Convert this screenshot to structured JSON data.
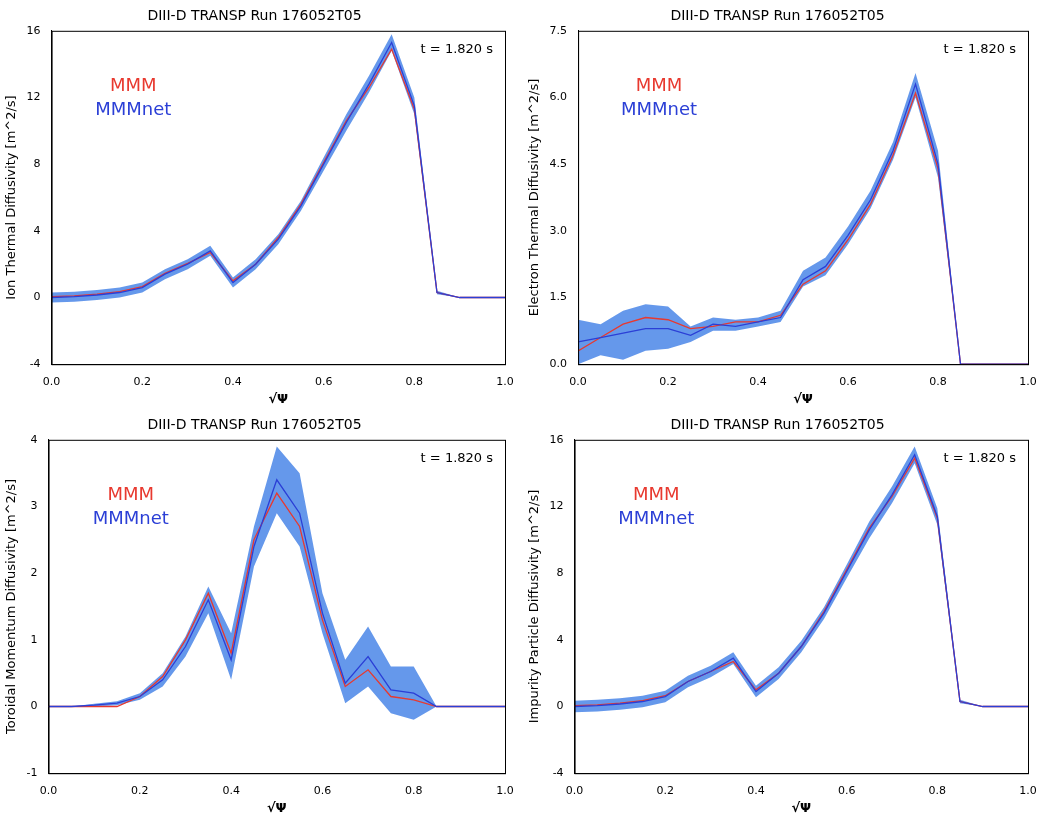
{
  "chart_data": [
    {
      "type": "line",
      "title": "DIII-D TRANSP Run 176052T05",
      "ylabel": "Ion Thermal Diffusivity [m^2/s]",
      "xlabel": "√Ψ",
      "annotation": "t = 1.820 s",
      "x": [
        0,
        0.05,
        0.1,
        0.15,
        0.2,
        0.25,
        0.3,
        0.35,
        0.4,
        0.45,
        0.5,
        0.55,
        0.6,
        0.65,
        0.7,
        0.75,
        0.8,
        0.85,
        0.9,
        0.95,
        1.0
      ],
      "series": [
        {
          "name": "MMM",
          "color": "#e8392f",
          "values": [
            0.05,
            0.1,
            0.2,
            0.35,
            0.65,
            1.45,
            2.05,
            2.7,
            1.0,
            2.0,
            3.6,
            5.6,
            8.1,
            10.6,
            12.6,
            14.9,
            11.3,
            0.3,
            0,
            0,
            0
          ]
        },
        {
          "name": "MMMnet",
          "color": "#2b3fd6",
          "values": [
            0,
            0.05,
            0.15,
            0.3,
            0.6,
            1.4,
            2.0,
            2.8,
            0.9,
            2.0,
            3.5,
            5.5,
            8.0,
            10.5,
            12.8,
            15.3,
            11.5,
            0.3,
            0,
            0,
            0
          ],
          "lower": [
            -0.3,
            -0.25,
            -0.15,
            0.0,
            0.3,
            1.1,
            1.7,
            2.5,
            0.6,
            1.7,
            3.2,
            5.2,
            7.6,
            10.0,
            12.3,
            14.8,
            11.0,
            0.2,
            0,
            0,
            0
          ],
          "upper": [
            0.3,
            0.35,
            0.45,
            0.6,
            0.9,
            1.7,
            2.3,
            3.1,
            1.2,
            2.3,
            3.8,
            5.8,
            8.4,
            11.0,
            13.3,
            15.8,
            12.0,
            0.4,
            0,
            0,
            0
          ]
        }
      ],
      "xlim": [
        0,
        1
      ],
      "xticks": [
        {
          "value": 0,
          "label": "0.0"
        },
        {
          "value": 0.2,
          "label": "0.2"
        },
        {
          "value": 0.4,
          "label": "0.4"
        },
        {
          "value": 0.6,
          "label": "0.6"
        },
        {
          "value": 0.8,
          "label": "0.8"
        },
        {
          "value": 1,
          "label": "1.0"
        }
      ],
      "ylim": [
        -4,
        16
      ],
      "yticks": [
        -4,
        0,
        4,
        8,
        12,
        16
      ],
      "grid": false,
      "legend": "upper left"
    },
    {
      "type": "line",
      "title": "DIII-D TRANSP Run 176052T05",
      "ylabel": "Electron Thermal Diffusivity [m^2/s]",
      "xlabel": "√Ψ",
      "annotation": "t = 1.820 s",
      "x": [
        0,
        0.05,
        0.1,
        0.15,
        0.2,
        0.25,
        0.3,
        0.35,
        0.4,
        0.45,
        0.5,
        0.55,
        0.6,
        0.65,
        0.7,
        0.75,
        0.8,
        0.85,
        0.9,
        0.95,
        1.0
      ],
      "series": [
        {
          "name": "MMM",
          "color": "#e8392f",
          "values": [
            0.3,
            0.6,
            0.9,
            1.05,
            1.0,
            0.8,
            0.85,
            0.95,
            0.95,
            1.1,
            1.8,
            2.1,
            2.8,
            3.6,
            4.7,
            6.1,
            4.4,
            0,
            0,
            0,
            0
          ]
        },
        {
          "name": "MMMnet",
          "color": "#2b3fd6",
          "values": [
            0.5,
            0.6,
            0.7,
            0.8,
            0.8,
            0.65,
            0.9,
            0.85,
            0.95,
            1.05,
            1.9,
            2.2,
            2.9,
            3.7,
            4.8,
            6.3,
            4.5,
            0,
            0,
            0,
            0
          ],
          "lower": [
            0.0,
            0.2,
            0.1,
            0.3,
            0.35,
            0.5,
            0.75,
            0.75,
            0.85,
            0.95,
            1.75,
            2.0,
            2.7,
            3.5,
            4.6,
            6.0,
            4.2,
            0,
            0,
            0,
            0
          ],
          "upper": [
            1.0,
            0.9,
            1.2,
            1.35,
            1.3,
            0.85,
            1.05,
            1.0,
            1.05,
            1.2,
            2.1,
            2.4,
            3.1,
            3.9,
            5.0,
            6.55,
            4.8,
            0,
            0,
            0,
            0
          ]
        }
      ],
      "xlim": [
        0,
        1
      ],
      "xticks": [
        {
          "value": 0,
          "label": "0.0"
        },
        {
          "value": 0.2,
          "label": "0.2"
        },
        {
          "value": 0.4,
          "label": "0.4"
        },
        {
          "value": 0.6,
          "label": "0.6"
        },
        {
          "value": 0.8,
          "label": "0.8"
        },
        {
          "value": 1,
          "label": "1.0"
        }
      ],
      "ylim": [
        0,
        7.5
      ],
      "yticks": [
        {
          "value": 0,
          "label": "0.0"
        },
        {
          "value": 1.5,
          "label": "1.5"
        },
        {
          "value": 3,
          "label": "3.0"
        },
        {
          "value": 4.5,
          "label": "4.5"
        },
        {
          "value": 6,
          "label": "6.0"
        },
        {
          "value": 7.5,
          "label": "7.5"
        }
      ],
      "grid": false,
      "legend": "upper left"
    },
    {
      "type": "line",
      "title": "DIII-D TRANSP Run 176052T05",
      "ylabel": "Toroidal Momentum Diffusivity [m^2/s]",
      "xlabel": "√Ψ",
      "annotation": "t = 1.820 s",
      "x": [
        0,
        0.05,
        0.1,
        0.15,
        0.2,
        0.25,
        0.3,
        0.35,
        0.4,
        0.45,
        0.5,
        0.55,
        0.6,
        0.65,
        0.7,
        0.75,
        0.8,
        0.85,
        0.9,
        0.95,
        1.0
      ],
      "series": [
        {
          "name": "MMM",
          "color": "#e8392f",
          "values": [
            0,
            0,
            0,
            0,
            0.15,
            0.45,
            1.0,
            1.7,
            0.8,
            2.5,
            3.2,
            2.7,
            1.3,
            0.3,
            0.55,
            0.15,
            0.1,
            0,
            0,
            0,
            0
          ]
        },
        {
          "name": "MMMnet",
          "color": "#2b3fd6",
          "values": [
            0,
            0,
            0.02,
            0.05,
            0.15,
            0.4,
            0.9,
            1.6,
            0.7,
            2.4,
            3.4,
            2.9,
            1.4,
            0.35,
            0.75,
            0.25,
            0.2,
            0,
            0,
            0,
            0
          ],
          "lower": [
            0,
            0,
            0,
            0.02,
            0.1,
            0.3,
            0.75,
            1.4,
            0.4,
            2.1,
            2.9,
            2.4,
            1.1,
            0.05,
            0.3,
            -0.1,
            -0.2,
            0,
            0,
            0,
            0
          ],
          "upper": [
            0,
            0,
            0.04,
            0.08,
            0.2,
            0.5,
            1.05,
            1.8,
            1.1,
            2.7,
            3.9,
            3.5,
            1.7,
            0.7,
            1.2,
            0.6,
            0.6,
            0,
            0,
            0,
            0
          ]
        }
      ],
      "xlim": [
        0,
        1
      ],
      "xticks": [
        {
          "value": 0,
          "label": "0.0"
        },
        {
          "value": 0.2,
          "label": "0.2"
        },
        {
          "value": 0.4,
          "label": "0.4"
        },
        {
          "value": 0.6,
          "label": "0.6"
        },
        {
          "value": 0.8,
          "label": "0.8"
        },
        {
          "value": 1,
          "label": "1.0"
        }
      ],
      "ylim": [
        -1,
        4
      ],
      "yticks": [
        -1,
        0,
        1,
        2,
        3,
        4
      ],
      "grid": false,
      "legend": "upper left"
    },
    {
      "type": "line",
      "title": "DIII-D TRANSP Run 176052T05",
      "ylabel": "Impurity Particle Diffusivity [m^2/s]",
      "xlabel": "√Ψ",
      "annotation": "t = 1.820 s",
      "x": [
        0,
        0.05,
        0.1,
        0.15,
        0.2,
        0.25,
        0.3,
        0.35,
        0.4,
        0.45,
        0.5,
        0.55,
        0.6,
        0.65,
        0.7,
        0.75,
        0.8,
        0.85,
        0.9,
        0.95,
        1.0
      ],
      "series": [
        {
          "name": "MMM",
          "color": "#e8392f",
          "values": [
            0.05,
            0.1,
            0.2,
            0.35,
            0.65,
            1.5,
            2.1,
            2.7,
            1.0,
            2.0,
            3.6,
            5.7,
            8.2,
            10.7,
            12.6,
            14.9,
            11.3,
            0.3,
            0,
            0,
            0
          ]
        },
        {
          "name": "MMMnet",
          "color": "#2b3fd6",
          "values": [
            0,
            0.05,
            0.15,
            0.3,
            0.6,
            1.5,
            2.1,
            2.9,
            0.9,
            2.0,
            3.6,
            5.6,
            8.1,
            10.6,
            12.7,
            15.1,
            11.4,
            0.3,
            0,
            0,
            0
          ],
          "lower": [
            -0.35,
            -0.3,
            -0.2,
            -0.05,
            0.25,
            1.15,
            1.75,
            2.55,
            0.55,
            1.65,
            3.25,
            5.25,
            7.7,
            10.1,
            12.2,
            14.6,
            10.9,
            0.2,
            0,
            0,
            0
          ],
          "upper": [
            0.35,
            0.4,
            0.5,
            0.65,
            0.95,
            1.85,
            2.45,
            3.25,
            1.25,
            2.35,
            3.95,
            5.95,
            8.5,
            11.1,
            13.2,
            15.6,
            11.9,
            0.4,
            0,
            0,
            0
          ]
        }
      ],
      "xlim": [
        0,
        1
      ],
      "xticks": [
        {
          "value": 0,
          "label": "0.0"
        },
        {
          "value": 0.2,
          "label": "0.2"
        },
        {
          "value": 0.4,
          "label": "0.4"
        },
        {
          "value": 0.6,
          "label": "0.6"
        },
        {
          "value": 0.8,
          "label": "0.8"
        },
        {
          "value": 1,
          "label": "1.0"
        }
      ],
      "ylim": [
        -4,
        16
      ],
      "yticks": [
        -4,
        0,
        4,
        8,
        12,
        16
      ],
      "grid": false,
      "legend": "upper left"
    }
  ]
}
